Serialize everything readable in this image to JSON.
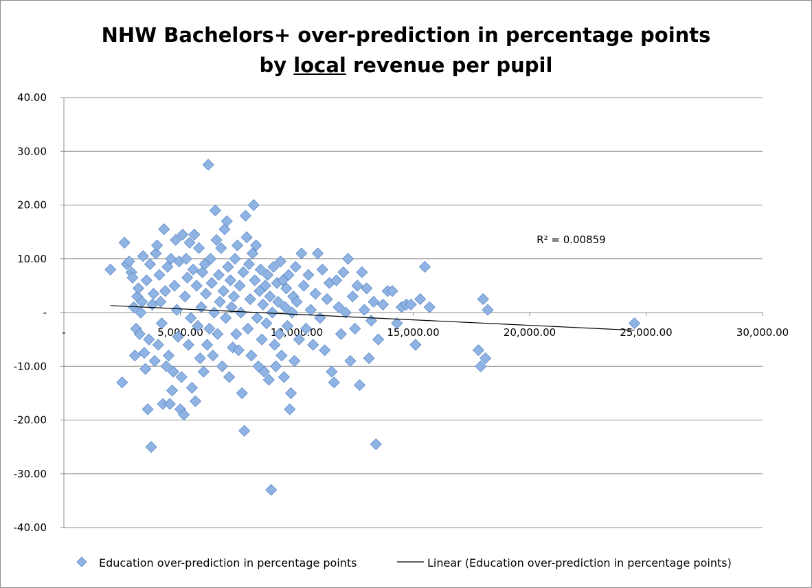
{
  "chart_data": {
    "type": "scatter",
    "title_line1": "NHW Bachelors+ over-prediction in percentage points",
    "title_line2_prefix": "by ",
    "title_line2_underlined": "local",
    "title_line2_suffix": " revenue per pupil",
    "xlabel": "",
    "ylabel": "",
    "xlim": [
      0,
      30000
    ],
    "ylim": [
      -40,
      40
    ],
    "x_ticks": [
      {
        "value": 0,
        "label": "-"
      },
      {
        "value": 5000,
        "label": "5,000.00"
      },
      {
        "value": 10000,
        "label": "10,000.00"
      },
      {
        "value": 15000,
        "label": "15,000.00"
      },
      {
        "value": 20000,
        "label": "20,000.00"
      },
      {
        "value": 25000,
        "label": "25,000.00"
      },
      {
        "value": 30000,
        "label": "30,000.00"
      }
    ],
    "y_ticks": [
      {
        "value": 40,
        "label": "40.00"
      },
      {
        "value": 30,
        "label": "30.00"
      },
      {
        "value": 20,
        "label": "20.00"
      },
      {
        "value": 10,
        "label": "10.00"
      },
      {
        "value": 0,
        "label": "-"
      },
      {
        "value": -10,
        "label": "-10.00"
      },
      {
        "value": -20,
        "label": "-20.00"
      },
      {
        "value": -30,
        "label": "-30.00"
      },
      {
        "value": -40,
        "label": "-40.00"
      }
    ],
    "grid": "horizontal",
    "legend_position": "bottom",
    "marker_color": "#8fb4e3",
    "marker_edge_color": "#5b87c8",
    "trend_color": "#000000",
    "series": [
      {
        "name": "Education over-prediction in percentage points",
        "kind": "scatter",
        "points": [
          [
            2000,
            8
          ],
          [
            2500,
            -13
          ],
          [
            2600,
            13
          ],
          [
            2700,
            9
          ],
          [
            2800,
            9.5
          ],
          [
            2900,
            7.5
          ],
          [
            2950,
            6.5
          ],
          [
            3000,
            1
          ],
          [
            3050,
            -8
          ],
          [
            3100,
            -3
          ],
          [
            3150,
            3
          ],
          [
            3200,
            4.5
          ],
          [
            3250,
            -4
          ],
          [
            3300,
            0
          ],
          [
            3350,
            2
          ],
          [
            3400,
            10.5
          ],
          [
            3450,
            -7.5
          ],
          [
            3500,
            -10.5
          ],
          [
            3550,
            6
          ],
          [
            3600,
            -18
          ],
          [
            3650,
            -5
          ],
          [
            3700,
            9
          ],
          [
            3750,
            -25
          ],
          [
            3800,
            1.5
          ],
          [
            3850,
            3.5
          ],
          [
            3900,
            -9
          ],
          [
            3950,
            11
          ],
          [
            4000,
            12.5
          ],
          [
            4050,
            -6
          ],
          [
            4100,
            7
          ],
          [
            4150,
            2
          ],
          [
            4200,
            -2
          ],
          [
            4250,
            -17
          ],
          [
            4300,
            15.5
          ],
          [
            4350,
            4
          ],
          [
            4400,
            -10
          ],
          [
            4450,
            8.5
          ],
          [
            4500,
            -8
          ],
          [
            4550,
            -17
          ],
          [
            4600,
            10
          ],
          [
            4650,
            -14.5
          ],
          [
            4700,
            -11
          ],
          [
            4750,
            5
          ],
          [
            4800,
            13.5
          ],
          [
            4850,
            0.5
          ],
          [
            4900,
            -4.5
          ],
          [
            4950,
            9.5
          ],
          [
            5000,
            -18
          ],
          [
            5050,
            -12
          ],
          [
            5100,
            14.5
          ],
          [
            5150,
            -19
          ],
          [
            5200,
            3
          ],
          [
            5250,
            10
          ],
          [
            5300,
            6.5
          ],
          [
            5350,
            -6
          ],
          [
            5400,
            13
          ],
          [
            5450,
            -1
          ],
          [
            5500,
            -14
          ],
          [
            5550,
            8
          ],
          [
            5600,
            14.5
          ],
          [
            5650,
            -16.5
          ],
          [
            5700,
            5
          ],
          [
            5750,
            -2.5
          ],
          [
            5800,
            12
          ],
          [
            5850,
            -8.5
          ],
          [
            5900,
            1
          ],
          [
            5950,
            7.5
          ],
          [
            6000,
            -11
          ],
          [
            6050,
            9
          ],
          [
            6100,
            3.5
          ],
          [
            6150,
            -6
          ],
          [
            6200,
            27.5
          ],
          [
            6250,
            -3
          ],
          [
            6300,
            10
          ],
          [
            6350,
            5.5
          ],
          [
            6400,
            -8
          ],
          [
            6450,
            0
          ],
          [
            6500,
            19
          ],
          [
            6550,
            13.5
          ],
          [
            6600,
            -4
          ],
          [
            6650,
            7
          ],
          [
            6700,
            2
          ],
          [
            6750,
            12
          ],
          [
            6800,
            -10
          ],
          [
            6850,
            4
          ],
          [
            6900,
            15.5
          ],
          [
            6950,
            -1
          ],
          [
            7000,
            17
          ],
          [
            7050,
            8.5
          ],
          [
            7100,
            -12
          ],
          [
            7150,
            6
          ],
          [
            7200,
            1
          ],
          [
            7250,
            -6.5
          ],
          [
            7300,
            3
          ],
          [
            7350,
            10
          ],
          [
            7400,
            -4
          ],
          [
            7450,
            12.5
          ],
          [
            7500,
            -7
          ],
          [
            7550,
            5
          ],
          [
            7600,
            0
          ],
          [
            7650,
            -15
          ],
          [
            7700,
            7.5
          ],
          [
            7750,
            -22
          ],
          [
            7800,
            18
          ],
          [
            7850,
            14
          ],
          [
            7900,
            -3
          ],
          [
            7950,
            9
          ],
          [
            8000,
            2.5
          ],
          [
            8050,
            -8
          ],
          [
            8100,
            11
          ],
          [
            8150,
            20
          ],
          [
            8200,
            6
          ],
          [
            8250,
            12.5
          ],
          [
            8300,
            -1
          ],
          [
            8350,
            -10
          ],
          [
            8400,
            4
          ],
          [
            8450,
            8
          ],
          [
            8500,
            -5
          ],
          [
            8550,
            1.5
          ],
          [
            8600,
            -11
          ],
          [
            8650,
            5
          ],
          [
            8700,
            -2
          ],
          [
            8750,
            7
          ],
          [
            8800,
            -12.5
          ],
          [
            8850,
            3
          ],
          [
            8900,
            -33
          ],
          [
            8950,
            0
          ],
          [
            9000,
            8.5
          ],
          [
            9050,
            -6
          ],
          [
            9100,
            -10
          ],
          [
            9150,
            5.5
          ],
          [
            9200,
            2
          ],
          [
            9250,
            -4
          ],
          [
            9300,
            9.5
          ],
          [
            9350,
            -8
          ],
          [
            9400,
            6
          ],
          [
            9450,
            -12
          ],
          [
            9500,
            1
          ],
          [
            9550,
            4.5
          ],
          [
            9600,
            -2.5
          ],
          [
            9650,
            7
          ],
          [
            9700,
            -18
          ],
          [
            9750,
            -15
          ],
          [
            9800,
            0
          ],
          [
            9850,
            3
          ],
          [
            9900,
            -9
          ],
          [
            9950,
            8.5
          ],
          [
            10000,
            2
          ],
          [
            10100,
            -5
          ],
          [
            10200,
            11
          ],
          [
            10300,
            5
          ],
          [
            10400,
            -3
          ],
          [
            10500,
            7
          ],
          [
            10600,
            0.5
          ],
          [
            10700,
            -6
          ],
          [
            10800,
            3.5
          ],
          [
            10900,
            11
          ],
          [
            11000,
            -1
          ],
          [
            11100,
            8
          ],
          [
            11200,
            -7
          ],
          [
            11300,
            2.5
          ],
          [
            11400,
            5.5
          ],
          [
            11500,
            -11
          ],
          [
            11600,
            -13
          ],
          [
            11700,
            6
          ],
          [
            11800,
            1
          ],
          [
            11900,
            -4
          ],
          [
            12000,
            7.5
          ],
          [
            12100,
            0
          ],
          [
            12200,
            10
          ],
          [
            12300,
            -9
          ],
          [
            12400,
            3
          ],
          [
            12500,
            -3
          ],
          [
            12600,
            5
          ],
          [
            12700,
            -13.5
          ],
          [
            12800,
            7.5
          ],
          [
            12900,
            0.5
          ],
          [
            13000,
            4.5
          ],
          [
            13100,
            -8.5
          ],
          [
            13200,
            -1.5
          ],
          [
            13300,
            2
          ],
          [
            13400,
            -24.5
          ],
          [
            13500,
            -5
          ],
          [
            13700,
            1.5
          ],
          [
            13900,
            4
          ],
          [
            14100,
            4
          ],
          [
            14300,
            -2
          ],
          [
            14500,
            1
          ],
          [
            14700,
            1.5
          ],
          [
            14900,
            1.5
          ],
          [
            15100,
            -6
          ],
          [
            15300,
            2.5
          ],
          [
            15500,
            8.5
          ],
          [
            15700,
            1
          ],
          [
            17800,
            -7
          ],
          [
            17900,
            -10
          ],
          [
            18000,
            2.5
          ],
          [
            18100,
            -8.5
          ],
          [
            18200,
            0.5
          ],
          [
            24500,
            -2
          ]
        ]
      },
      {
        "name": "Linear (Education over-prediction in percentage points)",
        "kind": "trendline",
        "points": [
          [
            2000,
            1.3
          ],
          [
            24500,
            -3.3
          ]
        ]
      }
    ],
    "annotations": [
      {
        "text": "R² = 0.00859",
        "x": 20300,
        "y": 12.9
      }
    ]
  }
}
